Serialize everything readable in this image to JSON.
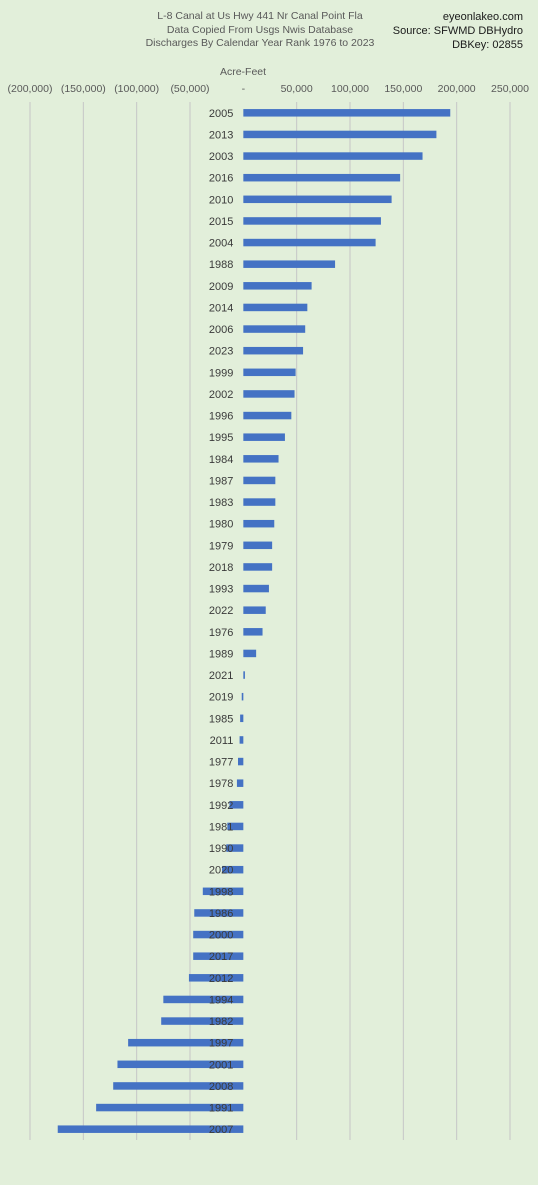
{
  "header": {
    "title_lines": [
      "L-8 Canal at Us Hwy 441 Nr Canal Point Fla",
      "Data Copied From Usgs Nwis Database",
      "Discharges By Calendar Year Rank 1976 to 2023"
    ],
    "source_lines": [
      "eyeonlakeo.com",
      "Source: SFWMD DBHydro",
      "DBKey: 02855"
    ]
  },
  "chart_data": {
    "type": "bar",
    "orientation": "horizontal",
    "xlabel": "Acre-Feet",
    "xlim": [
      -200000,
      250000
    ],
    "x_tick_labels": [
      "(200,000)",
      "(150,000)",
      "(100,000)",
      "(50,000)",
      "-",
      "50,000",
      "100,000",
      "150,000",
      "200,000",
      "250,000"
    ],
    "x_tick_values": [
      -200000,
      -150000,
      -100000,
      -50000,
      0,
      50000,
      100000,
      150000,
      200000,
      250000
    ],
    "grid": true,
    "bar_color": "#4472c4",
    "categories": [
      "2005",
      "2013",
      "2003",
      "2016",
      "2010",
      "2015",
      "2004",
      "1988",
      "2009",
      "2014",
      "2006",
      "2023",
      "1999",
      "2002",
      "1996",
      "1995",
      "1984",
      "1987",
      "1983",
      "1980",
      "1979",
      "2018",
      "1993",
      "2022",
      "1976",
      "1989",
      "2021",
      "2019",
      "1985",
      "2011",
      "1977",
      "1978",
      "1992",
      "1981",
      "1990",
      "2020",
      "1998",
      "1986",
      "2000",
      "2017",
      "2012",
      "1994",
      "1982",
      "1997",
      "2001",
      "2008",
      "1991",
      "2007"
    ],
    "values": [
      194000,
      181000,
      168000,
      147000,
      139000,
      129000,
      124000,
      86000,
      64000,
      60000,
      58000,
      56000,
      49000,
      48000,
      45000,
      39000,
      33000,
      30000,
      30000,
      29000,
      27000,
      27000,
      24000,
      21000,
      18000,
      12000,
      1500,
      -1500,
      -3000,
      -3500,
      -5000,
      -6000,
      -13000,
      -15000,
      -16000,
      -20000,
      -38000,
      -46000,
      -47000,
      -47000,
      -51000,
      -75000,
      -77000,
      -108000,
      -118000,
      -122000,
      -138000,
      -174000
    ]
  }
}
